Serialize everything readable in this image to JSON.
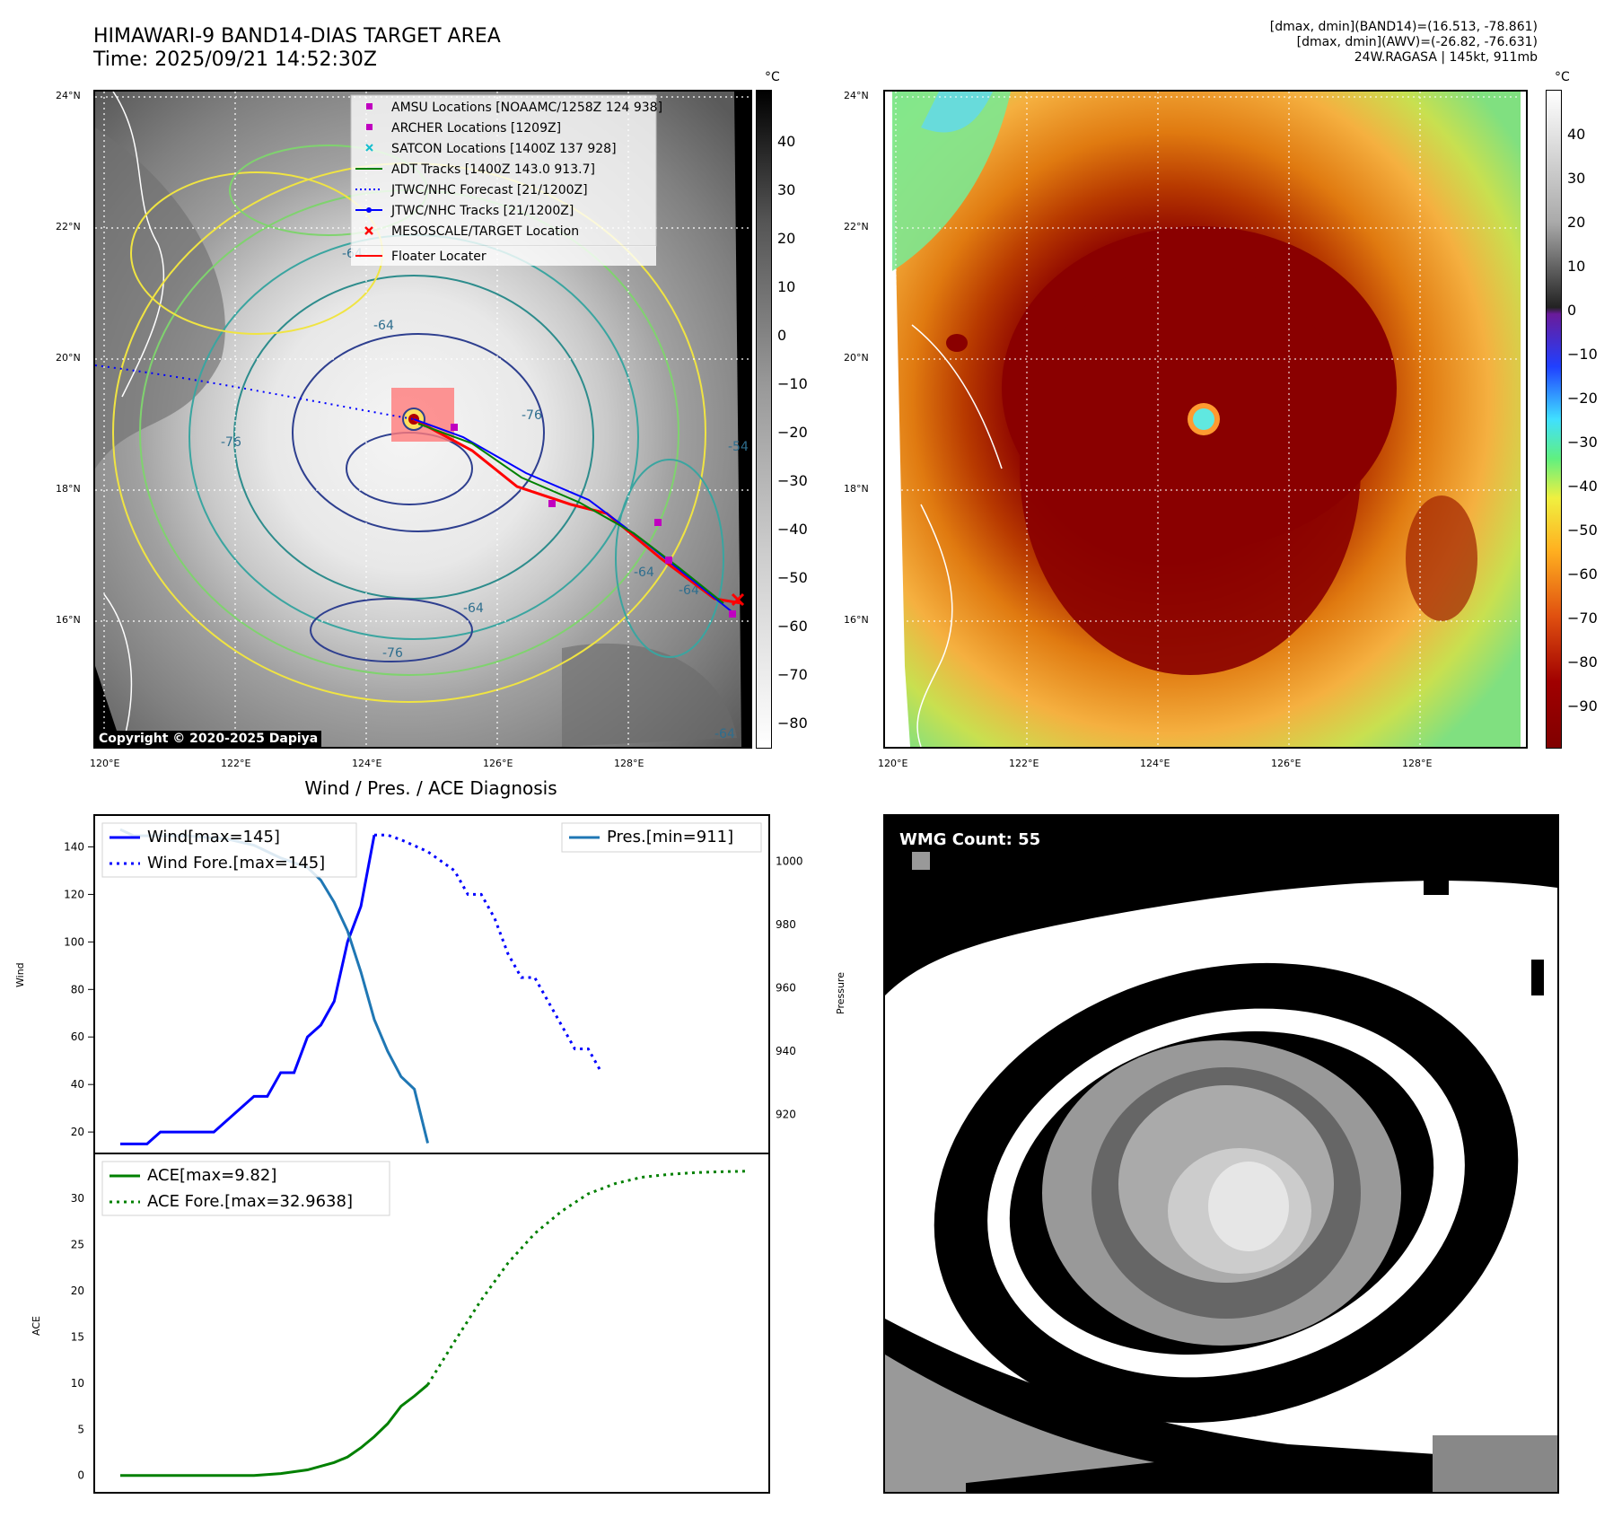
{
  "header": {
    "title_line1": "HIMAWARI-9 BAND14-DIAS TARGET AREA",
    "title_line2": "Time: 2025/09/21 14:52:30Z",
    "stat_line1": "[dmax, dmin](BAND14)=(16.513, -78.861)",
    "stat_line2": "[dmax, dmin](AWV)=(-26.82, -76.631)",
    "stat_line3": "24W.RAGASA | 145kt, 911mb"
  },
  "map": {
    "lat_labels": [
      "24°N",
      "22°N",
      "20°N",
      "18°N",
      "16°N"
    ],
    "lon_labels": [
      "120°E",
      "122°E",
      "124°E",
      "126°E",
      "128°E"
    ],
    "copyright": "Copyright © 2020-2025 Dapiya",
    "colorbar_unit": "°C",
    "gray_ticks": [
      "40",
      "30",
      "20",
      "10",
      "0",
      "−10",
      "−20",
      "−30",
      "−40",
      "−50",
      "−60",
      "−70",
      "−80"
    ],
    "color_ticks": [
      "40",
      "30",
      "20",
      "10",
      "0",
      "−10",
      "−20",
      "−30",
      "−40",
      "−50",
      "−60",
      "−70",
      "−80",
      "−90"
    ],
    "contour_labels": [
      "-64",
      "-64",
      "-76",
      "-76",
      "-76",
      "-64",
      "-64",
      "-64",
      "-54",
      "-64"
    ],
    "legend": [
      {
        "label": "AMSU Locations [NOAAMC/1258Z 124 938]",
        "color": "#c000c0",
        "marker": "square"
      },
      {
        "label": "ARCHER Locations [1209Z]",
        "color": "#c000c0",
        "marker": "square"
      },
      {
        "label": "SATCON Locations [1400Z 137 928]",
        "color": "#17becf",
        "marker": "x"
      },
      {
        "label": "ADT Tracks [1400Z 143.0 913.7]",
        "color": "#008000",
        "marker": "line"
      },
      {
        "label": "JTWC/NHC Forecast [21/1200Z]",
        "color": "#0000ff",
        "marker": "dotted"
      },
      {
        "label": "JTWC/NHC Tracks [21/1200Z]",
        "color": "#0000ff",
        "marker": "dotline"
      },
      {
        "label": "MESOSCALE/TARGET Location",
        "color": "#ff0000",
        "marker": "x"
      },
      {
        "label": "Floater Locater",
        "color": "#ff0000",
        "marker": "line"
      }
    ]
  },
  "diagnosis": {
    "title": "Wind / Pres. / ACE Diagnosis",
    "wmg_label": "WMG Count: 55"
  },
  "chart_data": [
    {
      "type": "line",
      "ylabel": "Wind",
      "y2label": "Pressure",
      "ylim": [
        14,
        150
      ],
      "y2lim": [
        910,
        1012
      ],
      "yticks": [
        20,
        40,
        60,
        80,
        100,
        120,
        140
      ],
      "y2ticks": [
        920,
        940,
        960,
        980,
        1000
      ],
      "legend_left": [
        "Wind[max=145]",
        "Wind Fore.[max=145]"
      ],
      "legend_right": [
        "Pres.[min=911]"
      ],
      "series": [
        {
          "name": "Wind[max=145]",
          "axis": "left",
          "color": "#0000ff",
          "style": "solid",
          "x": [
            0,
            1,
            2,
            3,
            4,
            5,
            6,
            7,
            8,
            9,
            10,
            11,
            12,
            13,
            14,
            15,
            16,
            17,
            18,
            19
          ],
          "y": [
            15,
            15,
            15,
            20,
            20,
            20,
            20,
            20,
            25,
            30,
            35,
            35,
            45,
            45,
            60,
            65,
            75,
            100,
            115,
            145
          ]
        },
        {
          "name": "Wind Fore.[max=145]",
          "axis": "left",
          "color": "#0000ff",
          "style": "dotted",
          "x": [
            19,
            20,
            21,
            23,
            25,
            26,
            27,
            28,
            29,
            30,
            31,
            32,
            33,
            34,
            35,
            36
          ],
          "y": [
            145,
            145,
            143,
            138,
            130,
            120,
            120,
            110,
            95,
            85,
            85,
            75,
            65,
            55,
            55,
            45
          ]
        },
        {
          "name": "Pres.[min=911]",
          "axis": "right",
          "color": "#1f77b4",
          "style": "solid",
          "x": [
            0,
            1,
            3,
            5,
            8,
            10,
            12,
            14,
            15,
            16,
            17,
            18,
            19,
            20,
            21,
            22,
            23
          ],
          "y": [
            1010,
            1008,
            1008,
            1008,
            1007,
            1005,
            1001,
            998,
            994,
            987,
            978,
            965,
            950,
            940,
            932,
            928,
            911
          ]
        }
      ]
    },
    {
      "type": "line",
      "ylabel": "ACE",
      "ylim": [
        -1,
        34
      ],
      "yticks": [
        0,
        5,
        10,
        15,
        20,
        25,
        30
      ],
      "legend": [
        "ACE[max=9.82]",
        "ACE Fore.[max=32.9638]"
      ],
      "series": [
        {
          "name": "ACE[max=9.82]",
          "color": "#008000",
          "style": "solid",
          "x": [
            0,
            2,
            4,
            6,
            8,
            9,
            10,
            12,
            14,
            15,
            16,
            17,
            18,
            19,
            20,
            21,
            22,
            23
          ],
          "y": [
            0,
            0,
            0,
            0,
            0,
            0,
            0,
            0.2,
            0.6,
            1.0,
            1.4,
            2.0,
            3.0,
            4.2,
            5.6,
            7.5,
            8.6,
            9.82
          ]
        },
        {
          "name": "ACE Fore.[max=32.9638]",
          "color": "#008000",
          "style": "dotted",
          "x": [
            23,
            25,
            27,
            29,
            31,
            33,
            35,
            37,
            39,
            41,
            43,
            45,
            47
          ],
          "y": [
            9.82,
            14.5,
            19.0,
            23.0,
            26.2,
            28.6,
            30.5,
            31.6,
            32.3,
            32.6,
            32.8,
            32.9,
            32.96
          ]
        }
      ]
    }
  ]
}
